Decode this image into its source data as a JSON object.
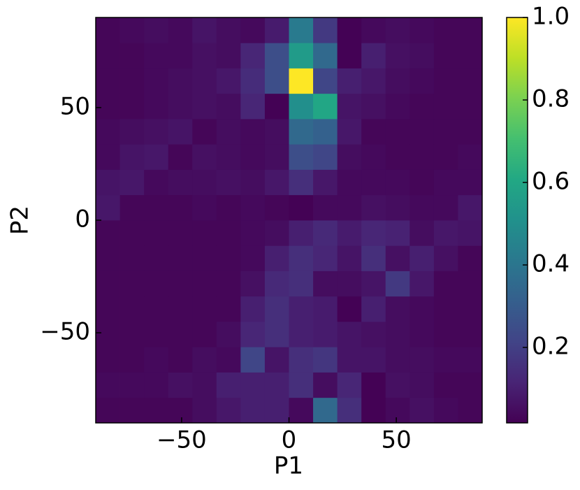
{
  "chart_data": {
    "type": "heatmap",
    "x_label": "P1",
    "y_label": "P2",
    "colormap": "viridis",
    "xbins": [
      -90,
      -78.75,
      -67.5,
      -56.25,
      -45,
      -33.75,
      -22.5,
      -11.25,
      0,
      11.25,
      22.5,
      33.75,
      45,
      56.25,
      67.5,
      78.75,
      90
    ],
    "ybins": [
      -90,
      -78.75,
      -67.5,
      -56.25,
      -45,
      -33.75,
      -22.5,
      -11.25,
      0,
      11.25,
      22.5,
      33.75,
      45,
      56.25,
      67.5,
      78.75,
      90
    ],
    "z": [
      [
        0.03,
        0.03,
        0.03,
        0.03,
        0.05,
        0.08,
        0.1,
        0.1,
        0.04,
        0.35,
        0.15,
        0.02,
        0.04,
        0.06,
        0.04,
        0.03
      ],
      [
        0.04,
        0.04,
        0.04,
        0.06,
        0.05,
        0.1,
        0.1,
        0.1,
        0.15,
        0.05,
        0.12,
        0.02,
        0.06,
        0.05,
        0.03,
        0.03
      ],
      [
        0.03,
        0.03,
        0.04,
        0.03,
        0.05,
        0.04,
        0.22,
        0.07,
        0.15,
        0.17,
        0.07,
        0.07,
        0.05,
        0.05,
        0.04,
        0.04
      ],
      [
        0.03,
        0.03,
        0.03,
        0.03,
        0.03,
        0.05,
        0.12,
        0.15,
        0.1,
        0.09,
        0.07,
        0.06,
        0.05,
        0.04,
        0.03,
        0.03
      ],
      [
        0.03,
        0.03,
        0.03,
        0.03,
        0.03,
        0.03,
        0.1,
        0.15,
        0.1,
        0.09,
        0.02,
        0.1,
        0.05,
        0.04,
        0.03,
        0.03
      ],
      [
        0.03,
        0.03,
        0.03,
        0.03,
        0.03,
        0.03,
        0.06,
        0.13,
        0.15,
        0.05,
        0.05,
        0.07,
        0.18,
        0.08,
        0.03,
        0.03
      ],
      [
        0.03,
        0.03,
        0.03,
        0.03,
        0.03,
        0.03,
        0.04,
        0.1,
        0.15,
        0.12,
        0.07,
        0.15,
        0.06,
        0.1,
        0.06,
        0.03
      ],
      [
        0.03,
        0.03,
        0.03,
        0.03,
        0.03,
        0.03,
        0.04,
        0.05,
        0.1,
        0.13,
        0.09,
        0.12,
        0.11,
        0.05,
        0.08,
        0.07
      ],
      [
        0.08,
        0.03,
        0.03,
        0.03,
        0.04,
        0.03,
        0.04,
        0.03,
        0.02,
        0.04,
        0.04,
        0.06,
        0.05,
        0.04,
        0.04,
        0.08
      ],
      [
        0.07,
        0.08,
        0.04,
        0.05,
        0.05,
        0.06,
        0.05,
        0.08,
        0.15,
        0.08,
        0.04,
        0.04,
        0.04,
        0.03,
        0.04,
        0.04
      ],
      [
        0.04,
        0.07,
        0.08,
        0.03,
        0.06,
        0.05,
        0.04,
        0.05,
        0.25,
        0.22,
        0.05,
        0.04,
        0.03,
        0.03,
        0.03,
        0.04
      ],
      [
        0.04,
        0.05,
        0.06,
        0.07,
        0.03,
        0.05,
        0.04,
        0.05,
        0.35,
        0.32,
        0.08,
        0.03,
        0.03,
        0.03,
        0.03,
        0.03
      ],
      [
        0.03,
        0.03,
        0.04,
        0.05,
        0.06,
        0.05,
        0.12,
        0.02,
        0.5,
        0.6,
        0.07,
        0.06,
        0.04,
        0.03,
        0.03,
        0.03
      ],
      [
        0.03,
        0.03,
        0.04,
        0.05,
        0.06,
        0.08,
        0.14,
        0.25,
        1.0,
        0.22,
        0.1,
        0.08,
        0.05,
        0.04,
        0.03,
        0.03
      ],
      [
        0.03,
        0.03,
        0.04,
        0.04,
        0.06,
        0.05,
        0.12,
        0.25,
        0.55,
        0.35,
        0.02,
        0.1,
        0.06,
        0.05,
        0.03,
        0.03
      ],
      [
        0.03,
        0.04,
        0.05,
        0.04,
        0.07,
        0.05,
        0.04,
        0.09,
        0.42,
        0.18,
        0.02,
        0.04,
        0.05,
        0.04,
        0.03,
        0.03
      ]
    ],
    "xlim": [
      -90,
      90
    ],
    "ylim": [
      -90,
      90
    ],
    "xticks": [
      {
        "value": -50,
        "label": "−50"
      },
      0,
      50
    ],
    "yticks": [
      {
        "value": -50,
        "label": "−50"
      },
      0,
      50
    ],
    "clim": [
      0.017,
      1
    ],
    "cticks": [
      0.2,
      0.4,
      0.6,
      0.8,
      {
        "value": 1,
        "label": "1.0"
      }
    ]
  }
}
